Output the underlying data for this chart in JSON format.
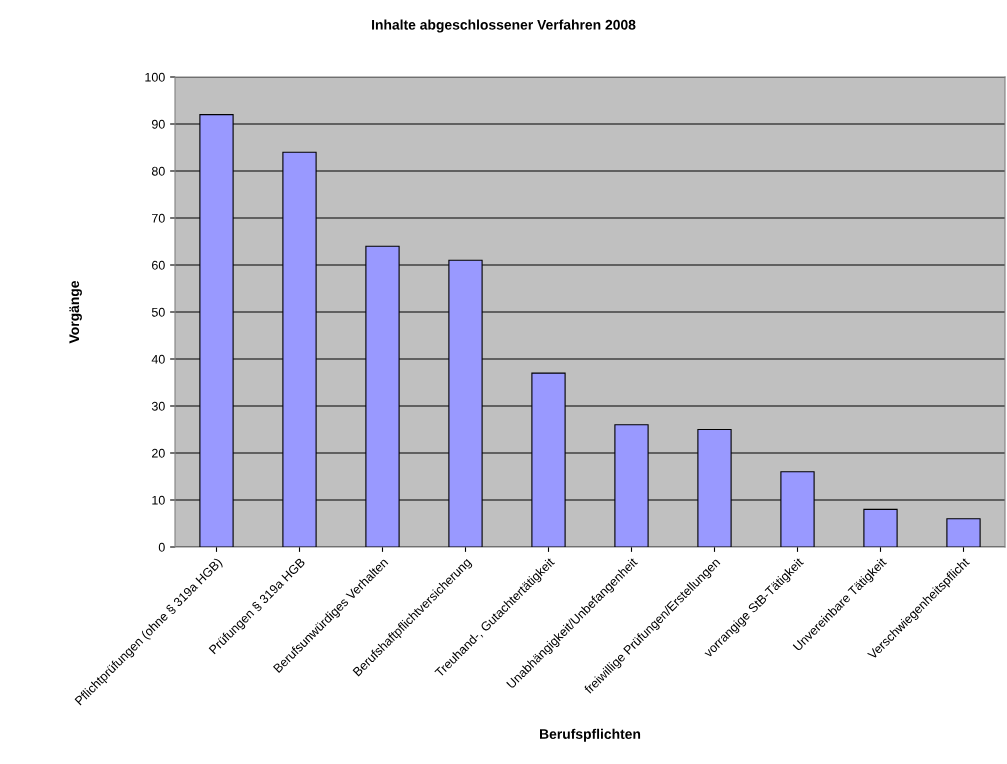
{
  "chart_data": {
    "type": "bar",
    "title": "Inhalte abgeschlossener Verfahren 2008",
    "xlabel": "Berufspflichten",
    "ylabel": "Vorgänge",
    "categories": [
      "Pflichtprüfungen (ohne § 319a HGB)",
      "Prüfungen § 319a HGB",
      "Berufsunwürdiges Verhalten",
      "Berufshaftpflichtversicherung",
      "Treuhand-, Gutachtertätigkeit",
      "Unabhängigkeit/Unbefangenheit",
      "freiwillige Prüfungen/Erstellungen",
      "vorrangige StB-Tätigkeit",
      "Unvereinbare Tätigkeit",
      "Verschwiegenheitspflicht"
    ],
    "values": [
      92,
      84,
      64,
      61,
      37,
      26,
      25,
      16,
      8,
      6
    ],
    "color": "#9999ff",
    "ylim": [
      0,
      100
    ],
    "yticks": [
      0,
      10,
      20,
      30,
      40,
      50,
      60,
      70,
      80,
      90,
      100
    ],
    "grid": "y"
  }
}
